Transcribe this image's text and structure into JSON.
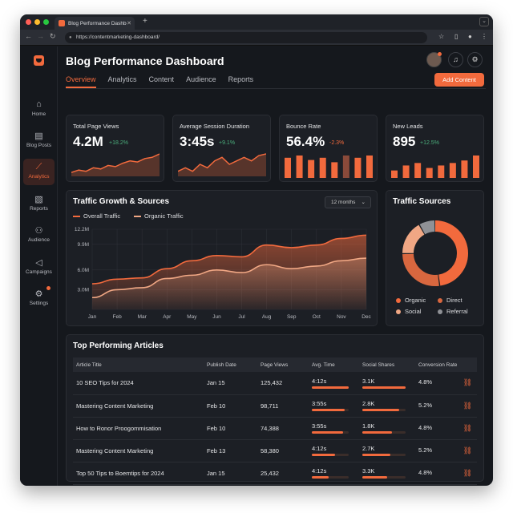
{
  "browser": {
    "tab_title": "Blog Performance Dashboard",
    "url": "https://contentmarketing-dashboard/"
  },
  "sidebar": {
    "items": [
      {
        "label": "Home",
        "icon": "home-icon"
      },
      {
        "label": "Blog Posts",
        "icon": "document-icon"
      },
      {
        "label": "Analytics",
        "icon": "chart-icon",
        "active": true
      },
      {
        "label": "Reports",
        "icon": "report-icon"
      },
      {
        "label": "Audience",
        "icon": "users-icon"
      },
      {
        "label": "Campaigns",
        "icon": "megaphone-icon"
      },
      {
        "label": "Settings",
        "icon": "gear-icon"
      }
    ]
  },
  "header": {
    "title": "Blog Performance Dashboard",
    "add_button": "Add Content",
    "tabs": [
      "Overview",
      "Analytics",
      "Content",
      "Audience",
      "Reports"
    ]
  },
  "kpis": [
    {
      "title": "Total Page Views",
      "value": "4.2M",
      "delta": "+18.2%",
      "trend": "up",
      "spark": [
        6,
        7,
        6.5,
        8,
        7.5,
        9,
        8.5,
        10,
        11,
        10.5,
        12,
        12.5,
        14
      ]
    },
    {
      "title": "Average Session Duration",
      "value": "3:45s",
      "delta": "+9.1%",
      "trend": "up",
      "spark": [
        8,
        9,
        8,
        10,
        9,
        11,
        12,
        10,
        11,
        12,
        11,
        12.5,
        13
      ]
    },
    {
      "title": "Bounce Rate",
      "value": "56.4%",
      "delta": "-2.3%",
      "trend": "down",
      "bars": [
        9,
        10,
        8,
        9,
        7,
        10,
        9,
        10
      ]
    },
    {
      "title": "New Leads",
      "value": "895",
      "delta": "+12.5%",
      "trend": "up",
      "bars": [
        3,
        5,
        6,
        4,
        5,
        6,
        7,
        9
      ]
    }
  ],
  "traffic": {
    "title": "Traffic Growth & Sources",
    "range": "12 months",
    "legend": [
      "Overall Traffic",
      "Organic Traffic"
    ]
  },
  "chart_data": [
    {
      "type": "area",
      "title": "Traffic Growth & Sources",
      "categories": [
        "Jan",
        "Feb",
        "Mar",
        "Apr",
        "May",
        "Jun",
        "Jul",
        "Aug",
        "Sep",
        "Oct",
        "Nov",
        "Dec"
      ],
      "y_ticks": [
        "3.0M",
        "6.0M",
        "9.9M",
        "12.2M"
      ],
      "ylim": [
        0,
        12.2
      ],
      "series": [
        {
          "name": "Overall Traffic",
          "values": [
            3.9,
            4.6,
            4.8,
            6.2,
            7.4,
            8.2,
            8.0,
            9.8,
            9.4,
            9.8,
            10.8,
            11.3
          ]
        },
        {
          "name": "Organic Traffic",
          "values": [
            1.8,
            3.0,
            3.3,
            4.7,
            5.2,
            6.0,
            5.6,
            6.8,
            6.2,
            6.6,
            7.4,
            7.8
          ]
        }
      ]
    },
    {
      "type": "pie",
      "title": "Traffic Sources",
      "categories": [
        "Organic",
        "Direct",
        "Social",
        "Referral"
      ],
      "values": [
        48,
        27,
        17,
        8
      ],
      "colors": [
        "#f26a3d",
        "#d8673f",
        "#f0a784",
        "#8f9196"
      ]
    }
  ],
  "sources": {
    "title": "Traffic Sources",
    "legend": [
      "Organic",
      "Direct",
      "Social",
      "Referral"
    ]
  },
  "articles": {
    "title": "Top Performing Articles",
    "columns": [
      "Article Title",
      "Publish Date",
      "Page Views",
      "Avg. Time",
      "Social Shares",
      "Conversion Rate"
    ],
    "rows": [
      {
        "title": "10 SEO Tips for 2024",
        "date": "Jan 15",
        "views": "125,432",
        "time": "4:12s",
        "time_pct": 100,
        "shares": "3.1K",
        "shares_pct": 100,
        "conv": "4.8%"
      },
      {
        "title": "Mastering Content Marketing",
        "date": "Feb 10",
        "views": "98,711",
        "time": "3:55s",
        "time_pct": 90,
        "shares": "2.8K",
        "shares_pct": 85,
        "conv": "5.2%"
      },
      {
        "title": "How to Ronor Proogommisation",
        "date": "Feb 10",
        "views": "74,388",
        "time": "3:55s",
        "time_pct": 84,
        "shares": "1.8K",
        "shares_pct": 68,
        "conv": "4.8%"
      },
      {
        "title": "Mastering Content Marketing",
        "date": "Feb 13",
        "views": "58,380",
        "time": "4:12s",
        "time_pct": 62,
        "shares": "2.7K",
        "shares_pct": 64,
        "conv": "5.2%"
      },
      {
        "title": "Top 50 Tips to Boemtips for 2024",
        "date": "Jan 15",
        "views": "25,432",
        "time": "4:12s",
        "time_pct": 45,
        "shares": "3.3K",
        "shares_pct": 58,
        "conv": "4.8%"
      }
    ]
  },
  "colors": {
    "accent": "#f26a3d",
    "positive": "#4caf7d",
    "negative": "#f26a3d"
  }
}
